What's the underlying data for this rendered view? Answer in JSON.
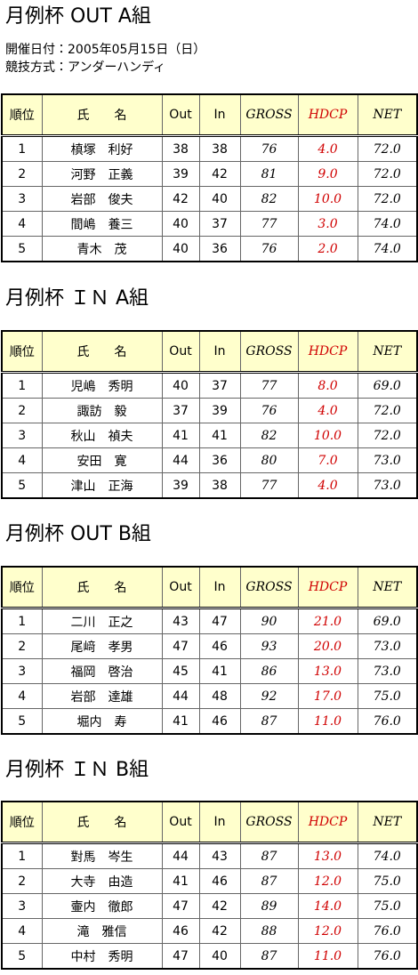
{
  "header": {
    "info": [
      "開催日付：2005年05月15日（日）",
      "競技方式：アンダーハンディ"
    ]
  },
  "sections": [
    {
      "title": "月例杯 OUT A組",
      "table": {
        "columns": [
          "順位",
          "氏　　名",
          "Out",
          "In",
          "GROSS",
          "HDCP",
          "NET"
        ],
        "rows": [
          [
            "1",
            "槙塚　利好",
            "38",
            "38",
            "76",
            "4.0",
            "72.0"
          ],
          [
            "2",
            "河野　正義",
            "39",
            "42",
            "81",
            "9.0",
            "72.0"
          ],
          [
            "3",
            "岩部　俊夫",
            "42",
            "40",
            "82",
            "10.0",
            "72.0"
          ],
          [
            "4",
            "間嶋　養三",
            "40",
            "37",
            "77",
            "3.0",
            "74.0"
          ],
          [
            "5",
            "青木　茂",
            "40",
            "36",
            "76",
            "2.0",
            "74.0"
          ]
        ]
      }
    },
    {
      "title": "月例杯 ＩＮ A組",
      "table": {
        "columns": [
          "順位",
          "氏　　名",
          "Out",
          "In",
          "GROSS",
          "HDCP",
          "NET"
        ],
        "rows": [
          [
            "1",
            "児嶋　秀明",
            "40",
            "37",
            "77",
            "8.0",
            "69.0"
          ],
          [
            "2",
            "諏訪　毅",
            "37",
            "39",
            "76",
            "4.0",
            "72.0"
          ],
          [
            "3",
            "秋山　禎夫",
            "41",
            "41",
            "82",
            "10.0",
            "72.0"
          ],
          [
            "4",
            "安田　寛",
            "44",
            "36",
            "80",
            "7.0",
            "73.0"
          ],
          [
            "5",
            "津山　正海",
            "39",
            "38",
            "77",
            "4.0",
            "73.0"
          ]
        ]
      }
    },
    {
      "title": "月例杯 OUT B組",
      "table": {
        "columns": [
          "順位",
          "氏　　名",
          "Out",
          "In",
          "GROSS",
          "HDCP",
          "NET"
        ],
        "rows": [
          [
            "1",
            "二川　正之",
            "43",
            "47",
            "90",
            "21.0",
            "69.0"
          ],
          [
            "2",
            "尾﨑　孝男",
            "47",
            "46",
            "93",
            "20.0",
            "73.0"
          ],
          [
            "3",
            "福岡　啓治",
            "45",
            "41",
            "86",
            "13.0",
            "73.0"
          ],
          [
            "4",
            "岩部　達雄",
            "44",
            "48",
            "92",
            "17.0",
            "75.0"
          ],
          [
            "5",
            "堀内　寿",
            "41",
            "46",
            "87",
            "11.0",
            "76.0"
          ]
        ]
      }
    },
    {
      "title": "月例杯 ＩＮ B組",
      "table": {
        "columns": [
          "順位",
          "氏　　名",
          "Out",
          "In",
          "GROSS",
          "HDCP",
          "NET"
        ],
        "rows": [
          [
            "1",
            "對馬　岑生",
            "44",
            "43",
            "87",
            "13.0",
            "74.0"
          ],
          [
            "2",
            "大寺　由造",
            "41",
            "46",
            "87",
            "12.0",
            "75.0"
          ],
          [
            "3",
            "壷内　徹郎",
            "47",
            "42",
            "89",
            "14.0",
            "75.0"
          ],
          [
            "4",
            "滝　雅信",
            "46",
            "42",
            "88",
            "12.0",
            "76.0"
          ],
          [
            "5",
            "中村　秀明",
            "47",
            "40",
            "87",
            "11.0",
            "76.0"
          ]
        ]
      }
    }
  ]
}
